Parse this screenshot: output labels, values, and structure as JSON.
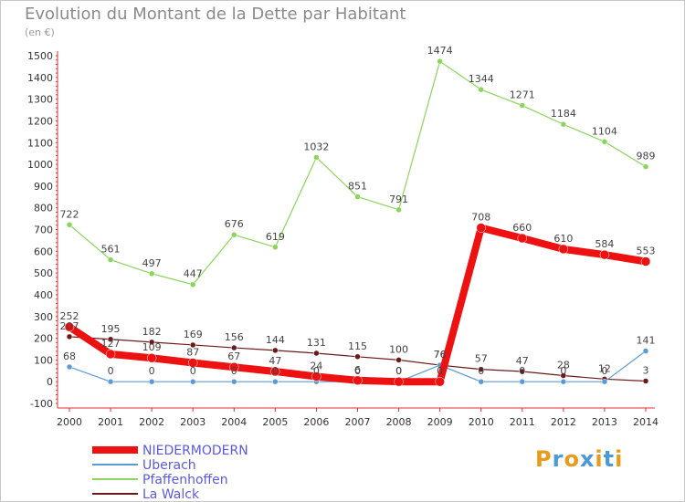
{
  "title": "Evolution du Montant de la Dette par Habitant",
  "subtitle": "(en €)",
  "brand": {
    "letters": [
      "P",
      "r",
      "o",
      "x",
      "i",
      "t",
      "i"
    ],
    "colors": [
      "#e89a1c",
      "#4a9ad8",
      "#e89a1c",
      "#4a9ad8",
      "#e89a1c",
      "#4a9ad8",
      "#e89a1c"
    ]
  },
  "chart_data": {
    "type": "line",
    "categories": [
      "2000",
      "2001",
      "2002",
      "2003",
      "2004",
      "2005",
      "2006",
      "2007",
      "2008",
      "2009",
      "2010",
      "2011",
      "2012",
      "2013",
      "2014"
    ],
    "ylim": [
      -100,
      1500
    ],
    "yticks": [
      -100,
      0,
      100,
      200,
      300,
      400,
      500,
      600,
      700,
      800,
      900,
      1000,
      1100,
      1200,
      1300,
      1400,
      1500
    ],
    "grid": false,
    "legend_position": "bottom-left",
    "series": [
      {
        "name": "Pfaffenhoffen",
        "color": "#8ad55a",
        "values": [
          722,
          561,
          497,
          447,
          676,
          619,
          1032,
          851,
          791,
          1474,
          1344,
          1271,
          1184,
          1104,
          989
        ]
      },
      {
        "name": "La Walck",
        "color": "#6b1a1a",
        "values": [
          207,
          195,
          182,
          169,
          156,
          144,
          131,
          115,
          100,
          76,
          57,
          47,
          28,
          12,
          3
        ]
      },
      {
        "name": "Uberach",
        "color": "#5b9bd5",
        "values": [
          68,
          0,
          0,
          0,
          0,
          0,
          0,
          0,
          0,
          76,
          0,
          0,
          0,
          0,
          141
        ]
      },
      {
        "name": "NIEDERMODERN",
        "color": "#ee1111",
        "values": [
          252,
          127,
          109,
          87,
          67,
          47,
          24,
          6,
          0,
          0,
          708,
          660,
          610,
          584,
          553
        ]
      }
    ]
  }
}
